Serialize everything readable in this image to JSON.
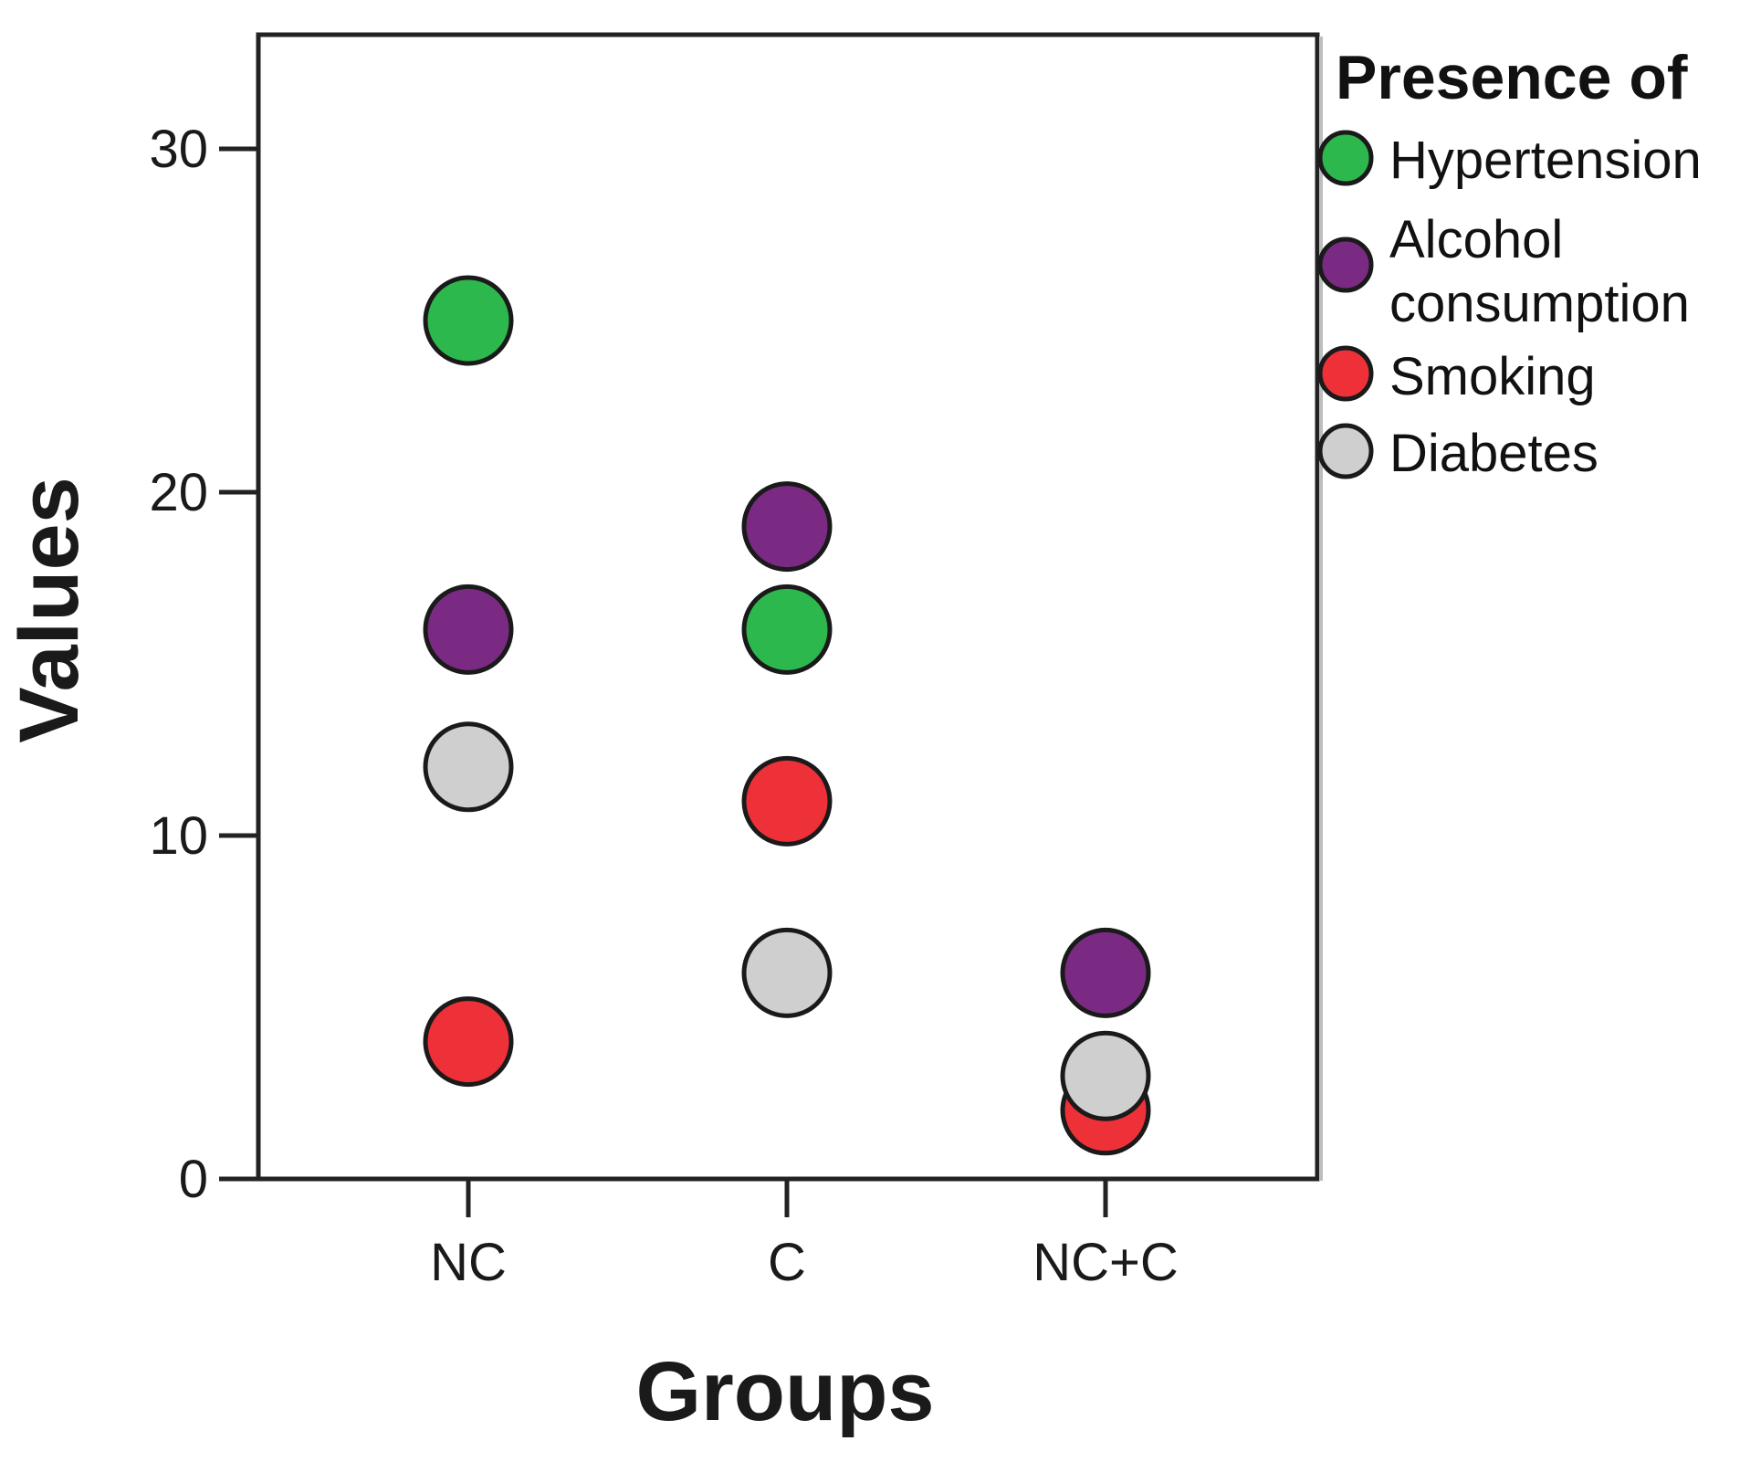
{
  "chart_data": {
    "type": "scatter",
    "categories": [
      "NC",
      "C",
      "NC+C"
    ],
    "series": [
      {
        "name": "Hypertension",
        "color": "#2db84d",
        "values": [
          25,
          16,
          null
        ]
      },
      {
        "name": "Alcohol consumption",
        "color": "#7b2a84",
        "values": [
          16,
          19,
          6
        ]
      },
      {
        "name": "Smoking",
        "color": "#ee3139",
        "values": [
          4,
          11,
          2
        ]
      },
      {
        "name": "Diabetes",
        "color": "#cfcfcf",
        "values": [
          12,
          6,
          3
        ]
      }
    ],
    "legend_title": "Presence of",
    "legend_lines": [
      [
        "Hypertension"
      ],
      [
        "Alcohol",
        "consumption"
      ],
      [
        "Smoking"
      ],
      [
        "Diabetes"
      ]
    ],
    "xlabel": "Groups",
    "ylabel": "Values",
    "ylim": [
      0,
      33
    ],
    "yticks": [
      0,
      10,
      20,
      30
    ],
    "grid": false,
    "legend_position": "right"
  }
}
